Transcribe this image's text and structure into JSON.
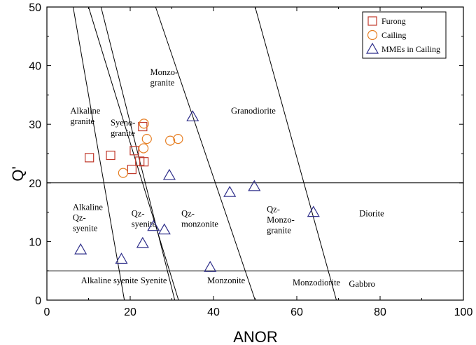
{
  "chart_data": {
    "type": "scatter",
    "xlabel": "ANOR",
    "ylabel": "Q'",
    "xlim": [
      0,
      100
    ],
    "ylim": [
      0,
      50
    ],
    "xticks": [
      0,
      20,
      40,
      60,
      80,
      100
    ],
    "yticks": [
      0,
      10,
      20,
      30,
      40,
      50
    ],
    "legend_position": "top-right",
    "colors": {
      "furong": "#c0392b",
      "cailing": "#e67e22",
      "mmes": "#2e2e8a",
      "lines": "#000000"
    },
    "series": [
      {
        "name": "Furong",
        "marker": "square",
        "points": [
          [
            10.2,
            24.3
          ],
          [
            15.3,
            24.7
          ],
          [
            21.0,
            25.5
          ],
          [
            23.0,
            29.6
          ],
          [
            22.3,
            23.7
          ],
          [
            23.3,
            23.6
          ],
          [
            20.4,
            22.3
          ]
        ]
      },
      {
        "name": "Cailing",
        "marker": "circle",
        "points": [
          [
            23.3,
            30.1
          ],
          [
            24.0,
            27.5
          ],
          [
            23.2,
            25.9
          ],
          [
            29.6,
            27.2
          ],
          [
            31.5,
            27.5
          ],
          [
            18.3,
            21.7
          ]
        ]
      },
      {
        "name": "MMEs in Cailing",
        "marker": "triangle",
        "points": [
          [
            35.0,
            31.3
          ],
          [
            29.4,
            21.3
          ],
          [
            43.9,
            18.4
          ],
          [
            49.8,
            19.4
          ],
          [
            64.0,
            15.0
          ],
          [
            25.6,
            12.6
          ],
          [
            28.2,
            12.0
          ],
          [
            23.0,
            9.7
          ],
          [
            8.1,
            8.6
          ],
          [
            17.9,
            7.0
          ],
          [
            39.2,
            5.6
          ]
        ]
      }
    ],
    "boundary_lines": {
      "horizontal": [
        20,
        5
      ],
      "oblique": [
        [
          [
            6.3,
            50
          ],
          [
            18.6,
            0
          ]
        ],
        [
          [
            10.0,
            50
          ],
          [
            31.6,
            0
          ]
        ],
        [
          [
            13.0,
            50
          ],
          [
            30.7,
            0
          ]
        ],
        [
          [
            26.1,
            50
          ],
          [
            50.0,
            0
          ]
        ],
        [
          [
            50.0,
            50
          ],
          [
            69.5,
            0
          ]
        ]
      ]
    },
    "region_labels": [
      {
        "lines": [
          "Monzo-",
          "granite"
        ],
        "x": 24.8,
        "y": 38.4
      },
      {
        "lines": [
          "Alkaline",
          "granite"
        ],
        "x": 5.6,
        "y": 31.8
      },
      {
        "lines": [
          "Syeno-",
          "granite"
        ],
        "x": 15.3,
        "y": 29.8
      },
      {
        "lines": [
          "Granodiorite"
        ],
        "x": 44.2,
        "y": 31.8
      },
      {
        "lines": [
          "Alkaline",
          "Qz-",
          "syenite"
        ],
        "x": 6.2,
        "y": 15.4
      },
      {
        "lines": [
          "Qz-",
          "syenite"
        ],
        "x": 20.3,
        "y": 14.3
      },
      {
        "lines": [
          "Qz-",
          "monzonite"
        ],
        "x": 32.3,
        "y": 14.3
      },
      {
        "lines": [
          "Qz-",
          "Monzo-",
          "granite"
        ],
        "x": 52.8,
        "y": 15.0
      },
      {
        "lines": [
          "Diorite"
        ],
        "x": 75.0,
        "y": 14.3
      },
      {
        "lines": [
          "Alkaline syenite"
        ],
        "x": 8.2,
        "y": 2.9
      },
      {
        "lines": [
          "Syenite"
        ],
        "x": 22.5,
        "y": 2.9
      },
      {
        "lines": [
          "Monzonite"
        ],
        "x": 38.5,
        "y": 2.9
      },
      {
        "lines": [
          "Monzodiorite"
        ],
        "x": 59.0,
        "y": 2.5
      },
      {
        "lines": [
          "Gabbro"
        ],
        "x": 72.5,
        "y": 2.3
      }
    ]
  }
}
